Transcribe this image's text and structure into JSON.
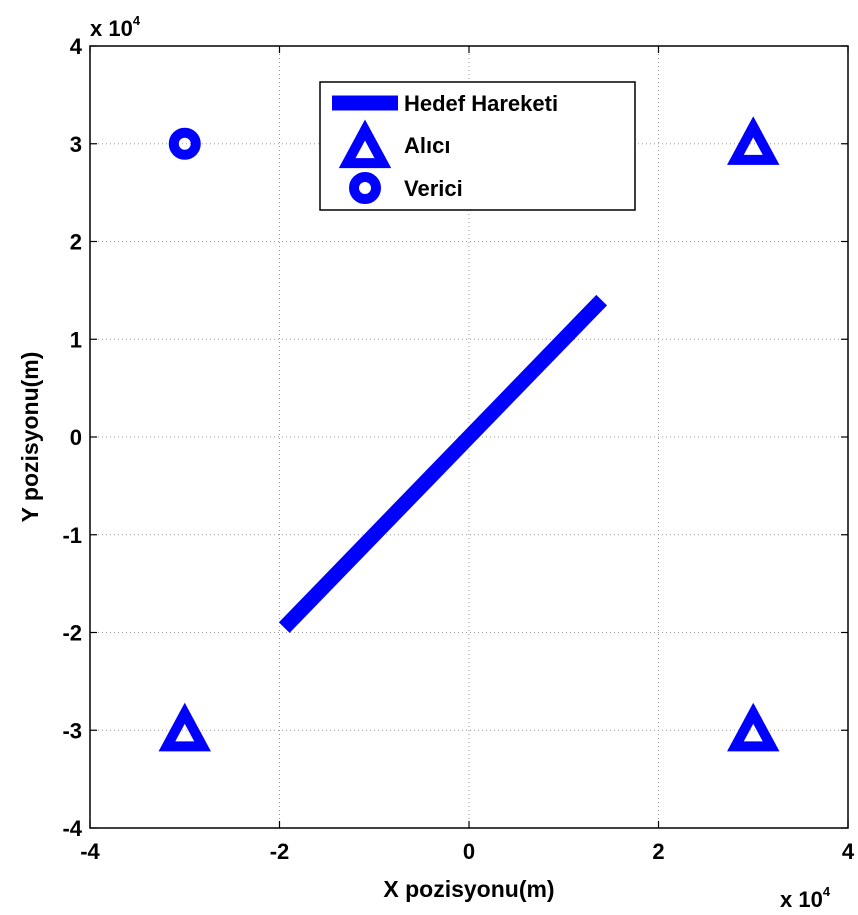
{
  "chart_data": {
    "type": "scatter",
    "xlabel": "X pozisyonu(m)",
    "ylabel": "Y pozisyonu(m)",
    "x_multiplier": {
      "base": "x 10",
      "exponent": "4"
    },
    "y_multiplier": {
      "base": "x 10",
      "exponent": "4"
    },
    "xlim": [
      -4,
      4
    ],
    "ylim": [
      -4,
      4
    ],
    "xticks": [
      "-4",
      "-2",
      "0",
      "2",
      "4"
    ],
    "yticks": [
      "-4",
      "-3",
      "-2",
      "-1",
      "0",
      "1",
      "2",
      "3",
      "4"
    ],
    "grid": true,
    "legend_position": "top-center",
    "color": "#0000ff",
    "series": [
      {
        "name": "Hedef Hareketi",
        "marker": "line",
        "points": [
          [
            -1.95,
            -1.95
          ],
          [
            1.4,
            1.4
          ]
        ]
      },
      {
        "name": "Alıcı",
        "marker": "triangle",
        "points": [
          [
            3,
            3
          ],
          [
            -3,
            -3
          ],
          [
            3,
            -3
          ]
        ]
      },
      {
        "name": "Verici",
        "marker": "circle",
        "points": [
          [
            -3,
            3
          ]
        ]
      }
    ]
  }
}
